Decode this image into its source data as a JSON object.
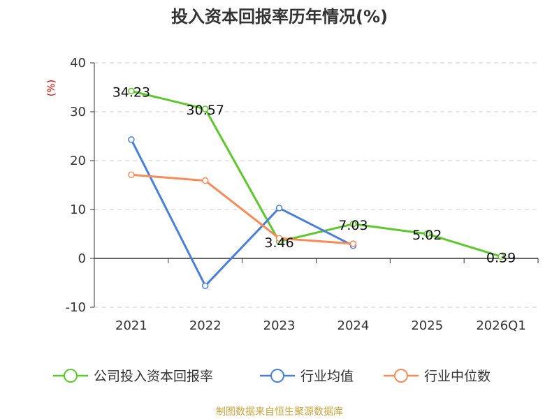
{
  "chart_data": {
    "type": "line",
    "title": "投入资本回报率历年情况(%)",
    "ylabel": "(%)",
    "ylim": [
      -10,
      40
    ],
    "yticks": [
      -10,
      0,
      10,
      20,
      30,
      40
    ],
    "categories": [
      "2021",
      "2022",
      "2023",
      "2024",
      "2025",
      "2026Q1"
    ],
    "series": [
      {
        "name": "公司投入资本回报率",
        "color": "#5ec72d",
        "values": [
          34.23,
          30.57,
          3.46,
          7.03,
          5.02,
          0.39
        ],
        "labels": [
          "34.23",
          "30.57",
          "3.46",
          "7.03",
          "5.02",
          "0.39"
        ]
      },
      {
        "name": "行业均值",
        "color": "#4a7fd9",
        "values": [
          24.3,
          -5.6,
          10.3,
          2.6,
          null,
          null
        ]
      },
      {
        "name": "行业中位数",
        "color": "#f58c5a",
        "values": [
          17.1,
          15.9,
          4.1,
          3.0,
          null,
          null
        ]
      }
    ],
    "grid": true,
    "legend_position": "bottom"
  },
  "source": "制图数据来自恒生聚源数据库"
}
